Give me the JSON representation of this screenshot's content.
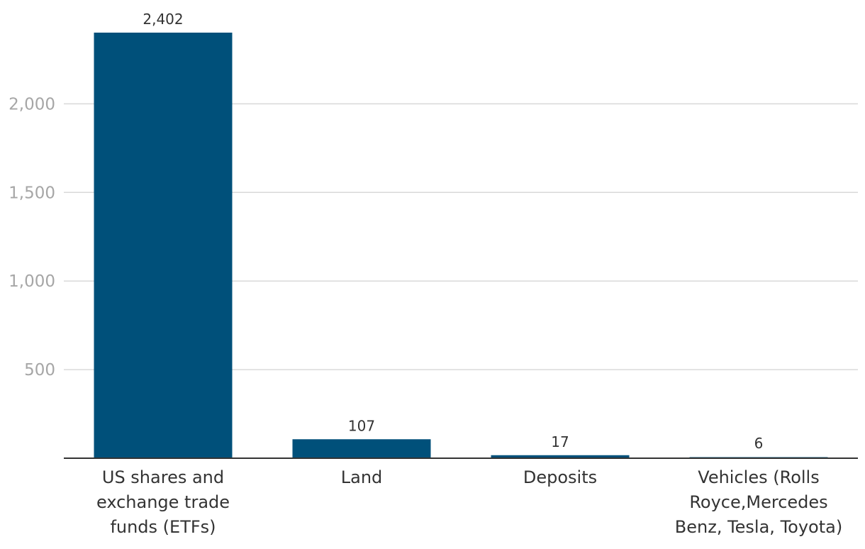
{
  "chart_data": {
    "type": "bar",
    "categories": [
      [
        "US shares and",
        "exchange trade",
        "funds (ETFs)"
      ],
      [
        "Land"
      ],
      [
        "Deposits"
      ],
      [
        "Vehicles (Rolls",
        "Royce,Mercedes",
        "Benz, Tesla, Toyota)"
      ]
    ],
    "values": [
      2402,
      107,
      17,
      6
    ],
    "value_labels": [
      "2,402",
      "107",
      "17",
      "6"
    ],
    "yticks": [
      500,
      1000,
      1500,
      2000
    ],
    "ytick_labels": [
      "500",
      "1,000",
      "1,500",
      "2,000"
    ],
    "ylim": [
      0,
      2402
    ],
    "grid": true,
    "bar_color": "#00507a",
    "title": "",
    "xlabel": "",
    "ylabel": ""
  }
}
